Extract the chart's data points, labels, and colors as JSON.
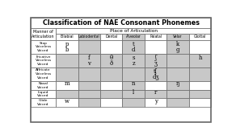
{
  "title": "Classification of NAE Consonant Phonemes",
  "col_header_row1": "Place of Articulation",
  "col_header_row2": [
    "Bilabial",
    "Labiodental",
    "Dental",
    "Alveolar",
    "Palatal",
    "Velar",
    "Glottal"
  ],
  "row_headers": [
    [
      "Stop",
      "Voiceless",
      "Voiced"
    ],
    [
      "Fricative",
      "Voiceless",
      "Voiced"
    ],
    [
      "Affricate",
      "Voiceless",
      "Voiced"
    ],
    [
      "Nasal",
      "Voiced"
    ],
    [
      "Liquid",
      "Voiced"
    ],
    [
      "Glide",
      "Voiced"
    ]
  ],
  "cells": [
    [
      [
        "p",
        "b"
      ],
      [],
      [],
      [
        "t",
        "d"
      ],
      [],
      [
        "k",
        "g"
      ],
      []
    ],
    [
      [],
      [
        "f",
        "v"
      ],
      [
        "θ",
        "ð"
      ],
      [
        "s",
        "z"
      ],
      [
        "ʃ",
        "ʒ"
      ],
      [],
      [
        "h",
        ""
      ]
    ],
    [
      [],
      [],
      [],
      [],
      [
        "tʃ",
        "dʒ"
      ],
      [],
      []
    ],
    [
      [
        "m",
        ""
      ],
      [],
      [],
      [
        "n",
        ""
      ],
      [],
      [
        "ŋ",
        ""
      ],
      []
    ],
    [
      [],
      [],
      [],
      [
        "l",
        ""
      ],
      [
        "r",
        ""
      ],
      [],
      []
    ],
    [
      [
        "w",
        ""
      ],
      [],
      [],
      [],
      [
        "y",
        ""
      ],
      [],
      []
    ]
  ],
  "shaded_cols": [
    1,
    3,
    5
  ],
  "row_shaded": [
    false,
    true,
    true,
    false,
    true,
    false
  ],
  "white": "#ffffff",
  "light_gray": "#c8c8c8",
  "border_color": "#666666"
}
